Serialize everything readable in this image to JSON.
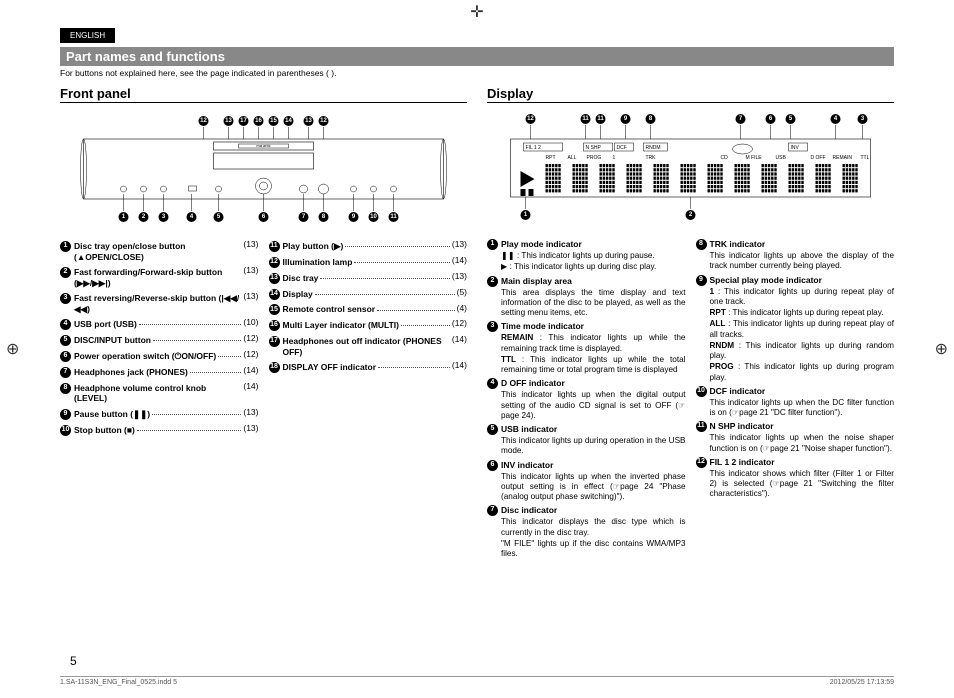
{
  "header": {
    "lang_tab": "ENGLISH",
    "title": "Part names and functions",
    "subtitle": "For buttons not explained here, see the page indicated in parentheses ( )."
  },
  "front_panel": {
    "heading": "Front panel",
    "top_numbers": [
      "12",
      "13",
      "17",
      "16",
      "15",
      "14",
      "13",
      "12"
    ],
    "bottom_numbers": [
      "1",
      "2",
      "3",
      "4",
      "5",
      "6",
      "7",
      "8",
      "9",
      "10",
      "11"
    ],
    "left_items": [
      {
        "n": "1",
        "title": "Disc tray open/close button (▲OPEN/CLOSE)",
        "page": "(13)"
      },
      {
        "n": "2",
        "title": "Fast forwarding/Forward-skip button (▶▶/▶▶|)",
        "page": "(13)"
      },
      {
        "n": "3",
        "title": "Fast reversing/Reverse-skip button (|◀◀/◀◀)",
        "page": "(13)"
      },
      {
        "n": "4",
        "title": "USB port (USB)",
        "page": "(10)"
      },
      {
        "n": "5",
        "title": "DISC/INPUT button",
        "page": "(12)"
      },
      {
        "n": "6",
        "title": "Power operation switch (⏻ON/OFF)",
        "page": "(12)"
      },
      {
        "n": "7",
        "title": "Headphones jack (PHONES)",
        "page": "(14)"
      },
      {
        "n": "8",
        "title": "Headphone volume control knob (LEVEL)",
        "page": "(14)"
      },
      {
        "n": "9",
        "title": "Pause button (❚❚)",
        "page": "(13)"
      },
      {
        "n": "10",
        "title": "Stop button (■)",
        "page": "(13)"
      }
    ],
    "right_items": [
      {
        "n": "11",
        "title": "Play button (▶)",
        "page": "(13)"
      },
      {
        "n": "12",
        "title": "Illumination lamp",
        "page": "(14)"
      },
      {
        "n": "13",
        "title": "Disc tray",
        "page": "(13)"
      },
      {
        "n": "14",
        "title": "Display",
        "page": "(5)"
      },
      {
        "n": "15",
        "title": "Remote control sensor",
        "page": "(4)"
      },
      {
        "n": "16",
        "title": "Multi Layer indicator (MULTI)",
        "page": "(12)"
      },
      {
        "n": "17",
        "title": "Headphones out off indicator (PHONES OFF)",
        "page": "(14)"
      },
      {
        "n": "18",
        "title": "DISPLAY OFF indicator",
        "page": "(14)"
      }
    ]
  },
  "display": {
    "heading": "Display",
    "top_numbers": [
      "12",
      "11",
      "11",
      "9",
      "8",
      "7",
      "6",
      "5",
      "4",
      "3"
    ],
    "bottom_numbers": [
      "1",
      "2"
    ],
    "labels_row1": [
      "FIL 1 2",
      "N SHP",
      "DCF",
      "RNDM",
      "",
      "",
      "INV"
    ],
    "labels_row2": [
      "RPT",
      "ALL",
      "PROG",
      "1",
      "TRK",
      "CD",
      "M FILE",
      "USB",
      "D OFF",
      "REMAIN",
      "TTL"
    ],
    "left_items": [
      {
        "n": "1",
        "title": "Play mode indicator",
        "desc": "❚❚ : This indicator lights up during pause.\n▶ : This indicator lights up during disc play."
      },
      {
        "n": "2",
        "title": "Main display area",
        "desc": "This area displays the time display and text information of the disc to be played, as well as the setting menu items, etc."
      },
      {
        "n": "3",
        "title": "Time mode indicator",
        "desc": "<b>REMAIN</b> : This indicator lights up while the remaining track time is displayed.\n<b>TTL</b> : This indicator lights up while the total remaining time or total program time is displayed"
      },
      {
        "n": "4",
        "title": "D OFF indicator",
        "desc": "This indicator lights up when the digital output setting of the audio CD signal is set to OFF (☞page 24)."
      },
      {
        "n": "5",
        "title": "USB indicator",
        "desc": "This indicator lights up during operation in the USB mode."
      },
      {
        "n": "6",
        "title": "INV indicator",
        "desc": "This indicator lights up when the inverted phase output setting is in effect (☞page 24 \"Phase (analog output phase switching)\")."
      },
      {
        "n": "7",
        "title": "Disc indicator",
        "desc": "This indicator displays the disc type which is currently in the disc tray.\n\"M FILE\" lights up if the disc contains WMA/MP3 files."
      }
    ],
    "right_items": [
      {
        "n": "8",
        "title": "TRK indicator",
        "desc": "This indicator lights up above the display of the track number currently being played."
      },
      {
        "n": "9",
        "title": "Special play mode indicator",
        "desc": "<b>1</b> : This indicator lights up during repeat play of one track.\n<b>RPT</b> : This indicator lights up during repeat play.\n<b>ALL</b> : This indicator lights up during repeat play of all tracks.\n<b>RNDM</b> : This indicator lights up during random play.\n<b>PROG</b> : This indicator lights up during program play."
      },
      {
        "n": "10",
        "title": "DCF indicator",
        "desc": "This indicator lights up when the DC filter function is on (☞page 21 \"DC filter function\")."
      },
      {
        "n": "11",
        "title": "N SHP indicator",
        "desc": "This indicator lights up when the noise shaper function is on (☞page 21 \"Noise shaper function\")."
      },
      {
        "n": "12",
        "title": "FIL 1 2 indicator",
        "desc": "This indicator shows which filter (Filter 1 or Filter 2) is selected (☞page 21 \"Switching the filter characteristics\")."
      }
    ]
  },
  "page_number": "5",
  "footer": {
    "left": "1.SA-11S3N_ENG_Final_0525.indd   5",
    "right": "2012/05/25   17:13:59"
  }
}
